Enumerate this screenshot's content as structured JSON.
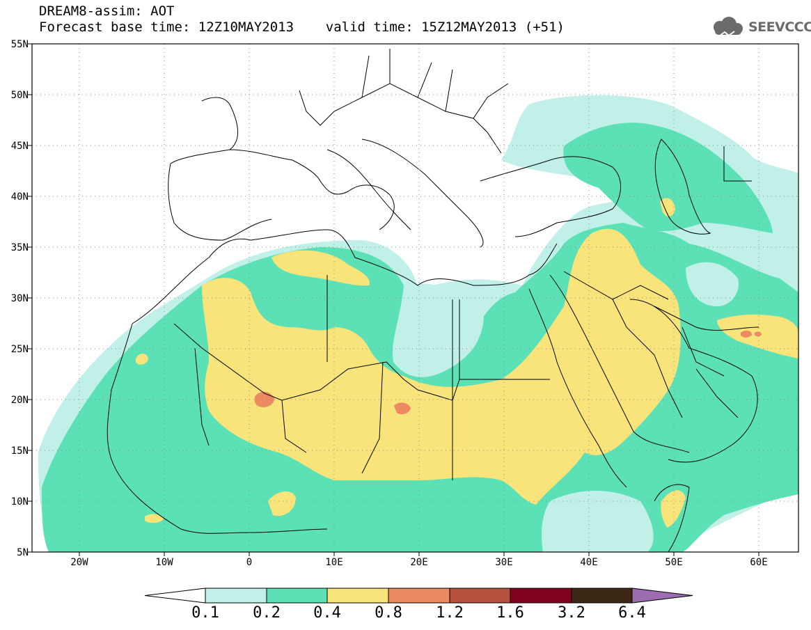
{
  "header": {
    "title_line1": "DREAM8-assim: AOT",
    "title_line2": "Forecast base time: 12Z10MAY2013    valid time: 15Z12MAY2013 (+51)",
    "logo_text": "SEEVCCC"
  },
  "map": {
    "lon_range": [
      -25,
      65
    ],
    "lat_range": [
      5,
      55
    ],
    "lat_labels": [
      "55N",
      "50N",
      "45N",
      "40N",
      "35N",
      "30N",
      "25N",
      "20N",
      "15N",
      "10N",
      "5N"
    ],
    "lon_labels": [
      "20W",
      "10W",
      "0",
      "10E",
      "20E",
      "30E",
      "40E",
      "50E",
      "60E"
    ],
    "gridlines": "dotted"
  },
  "legend": {
    "labels": [
      "0.1",
      "0.2",
      "0.4",
      "0.8",
      "1.2",
      "1.6",
      "3.2",
      "6.4"
    ],
    "colors": [
      "#ffffff",
      "#c0f0e8",
      "#5ce0b6",
      "#f8e47a",
      "#ec8a64",
      "#b4503c",
      "#800020",
      "#3c2814",
      "#9e6cb0"
    ]
  }
}
